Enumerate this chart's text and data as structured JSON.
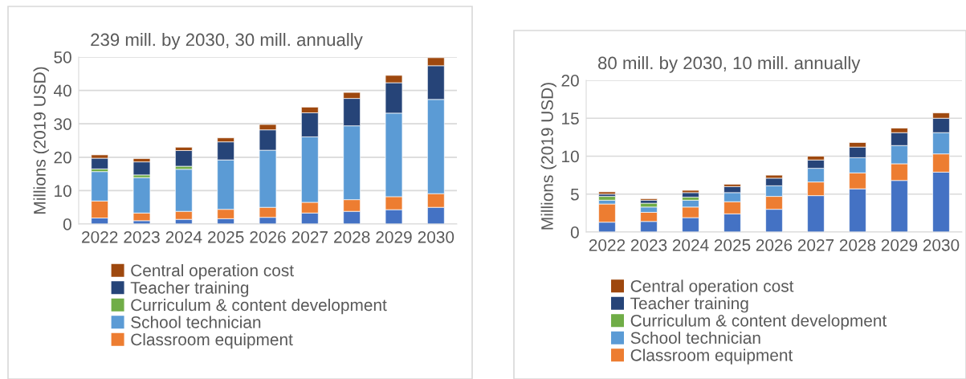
{
  "chart_data": [
    {
      "type": "bar",
      "stacked": true,
      "title": "239 mill. by 2030, 30 mill. annually",
      "ylabel": "Millions (2019 USD)",
      "categories": [
        "2022",
        "2023",
        "2024",
        "2025",
        "2026",
        "2027",
        "2028",
        "2029",
        "2030"
      ],
      "ylim": [
        0,
        50
      ],
      "yticks": [
        0,
        10,
        20,
        30,
        40,
        50
      ],
      "grid": "y",
      "legend": "bottom",
      "series": [
        {
          "color": "#4472c4",
          "values": [
            1.8,
            1.0,
            1.4,
            1.6,
            2.0,
            3.3,
            3.8,
            4.3,
            5.0
          ]
        },
        {
          "name": "Classroom equipment",
          "color": "#ed7d31",
          "values": [
            5.1,
            2.3,
            2.4,
            2.8,
            3.0,
            3.2,
            3.5,
            3.9,
            4.1
          ]
        },
        {
          "name": "School technician",
          "color": "#5b9bd5",
          "values": [
            8.8,
            10.6,
            12.6,
            14.8,
            17.1,
            19.6,
            22.1,
            25.0,
            28.2
          ]
        },
        {
          "name": "Curriculum & content development",
          "color": "#70ad47",
          "values": [
            0.8,
            0.8,
            0.9,
            null,
            null,
            null,
            null,
            null,
            null
          ]
        },
        {
          "name": "Teacher training",
          "color": "#264478",
          "values": [
            3.2,
            3.9,
            4.7,
            5.4,
            6.1,
            7.2,
            8.2,
            9.1,
            10.1
          ]
        },
        {
          "name": "Central operation cost",
          "color": "#9e480e",
          "values": [
            1.0,
            1.0,
            1.0,
            1.2,
            1.6,
            1.7,
            1.8,
            2.2,
            2.4
          ]
        }
      ]
    },
    {
      "type": "bar",
      "stacked": true,
      "title": "80 mill. by 2030, 10 mill. annually",
      "ylabel": "Millions (2019 USD)",
      "categories": [
        "2022",
        "2023",
        "2024",
        "2025",
        "2026",
        "2027",
        "2028",
        "2029",
        "2030"
      ],
      "ylim": [
        0,
        20
      ],
      "yticks": [
        0,
        5,
        10,
        15,
        20
      ],
      "grid": "y",
      "legend": "bottom",
      "series": [
        {
          "color": "#4472c4",
          "values": [
            1.3,
            1.4,
            1.9,
            2.4,
            3.0,
            4.8,
            5.7,
            6.8,
            7.9
          ]
        },
        {
          "name": "Classroom equipment",
          "color": "#ed7d31",
          "values": [
            2.4,
            1.2,
            1.4,
            1.6,
            1.7,
            1.8,
            2.1,
            2.2,
            2.4
          ]
        },
        {
          "name": "School technician",
          "color": "#5b9bd5",
          "values": [
            0.5,
            0.7,
            0.9,
            1.2,
            1.4,
            1.8,
            2.0,
            2.4,
            2.8
          ]
        },
        {
          "name": "Curriculum & content development",
          "color": "#70ad47",
          "values": [
            0.5,
            0.5,
            0.4,
            null,
            null,
            null,
            null,
            null,
            null
          ]
        },
        {
          "name": "Teacher training",
          "color": "#264478",
          "values": [
            0.3,
            0.4,
            0.6,
            0.8,
            1.0,
            1.1,
            1.4,
            1.7,
            1.9
          ]
        },
        {
          "name": "Central operation cost",
          "color": "#9e480e",
          "values": [
            0.3,
            0.2,
            0.3,
            0.3,
            0.4,
            0.5,
            0.6,
            0.6,
            0.7
          ]
        }
      ]
    }
  ]
}
